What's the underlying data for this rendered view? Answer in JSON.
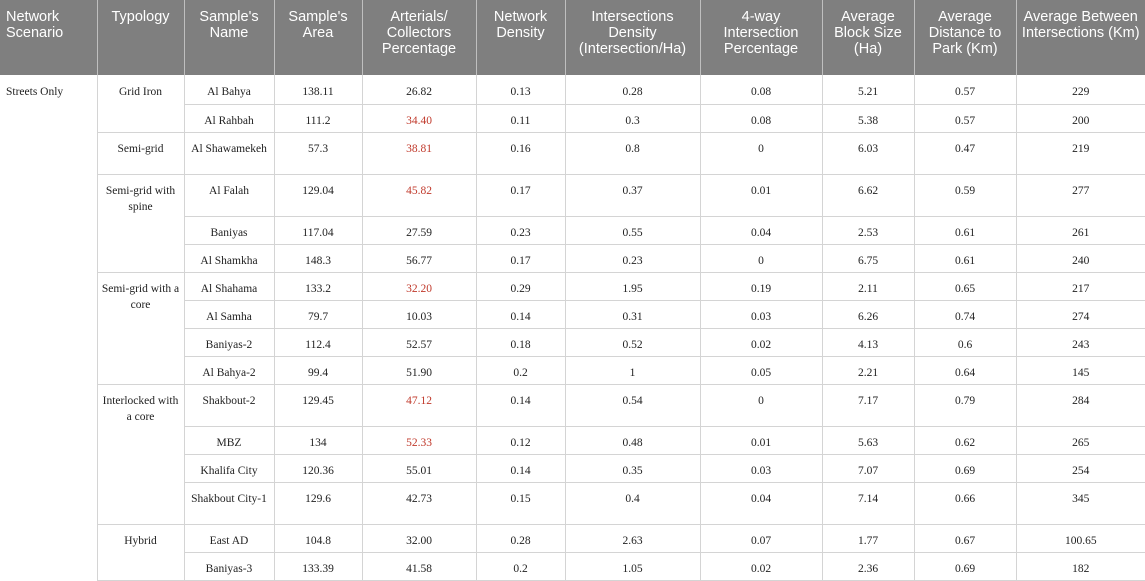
{
  "headers": [
    "Network Scenario",
    "Typology",
    "Sample's Name",
    "Sample's Area",
    "Arterials/ Collectors Percentage",
    "Network Density",
    "Intersections Density (Intersection/Ha)",
    "4-way Intersection Percentage",
    "Average Block Size (Ha)",
    "Average Distance to Park (Km)",
    "Average Between Intersections (Km)"
  ],
  "scenario": "Streets Only",
  "typologies": [
    "Grid Iron",
    "Semi-grid",
    "Semi-grid with spine",
    "Semi-grid with a core",
    "Interlocked with a core",
    "Hybrid"
  ],
  "highlight_color": "#c0392b",
  "rows": [
    {
      "name": "Al Bahya",
      "area": "138.11",
      "arterials": "26.82",
      "arterials_highlight": false,
      "net_density": "0.13",
      "int_density": "0.28",
      "four_way": "0.08",
      "block": "5.21",
      "park": "0.57",
      "between": "229"
    },
    {
      "name": "Al Rahbah",
      "area": "111.2",
      "arterials": "34.40",
      "arterials_highlight": true,
      "net_density": "0.11",
      "int_density": "0.3",
      "four_way": "0.08",
      "block": "5.38",
      "park": "0.57",
      "between": "200"
    },
    {
      "name": "Al Shawamekeh",
      "area": "57.3",
      "arterials": "38.81",
      "arterials_highlight": true,
      "net_density": "0.16",
      "int_density": "0.8",
      "four_way": "0",
      "block": "6.03",
      "park": "0.47",
      "between": "219"
    },
    {
      "name": "Al Falah",
      "area": "129.04",
      "arterials": "45.82",
      "arterials_highlight": true,
      "net_density": "0.17",
      "int_density": "0.37",
      "four_way": "0.01",
      "block": "6.62",
      "park": "0.59",
      "between": "277"
    },
    {
      "name": "Baniyas",
      "area": "117.04",
      "arterials": "27.59",
      "arterials_highlight": false,
      "net_density": "0.23",
      "int_density": "0.55",
      "four_way": "0.04",
      "block": "2.53",
      "park": "0.61",
      "between": "261"
    },
    {
      "name": "Al Shamkha",
      "area": "148.3",
      "arterials": "56.77",
      "arterials_highlight": false,
      "net_density": "0.17",
      "int_density": "0.23",
      "four_way": "0",
      "block": "6.75",
      "park": "0.61",
      "between": "240"
    },
    {
      "name": "Al Shahama",
      "area": "133.2",
      "arterials": "32.20",
      "arterials_highlight": true,
      "net_density": "0.29",
      "int_density": "1.95",
      "four_way": "0.19",
      "block": "2.11",
      "park": "0.65",
      "between": "217"
    },
    {
      "name": "Al Samha",
      "area": "79.7",
      "arterials": "10.03",
      "arterials_highlight": false,
      "net_density": "0.14",
      "int_density": "0.31",
      "four_way": "0.03",
      "block": "6.26",
      "park": "0.74",
      "between": "274"
    },
    {
      "name": "Baniyas-2",
      "area": "112.4",
      "arterials": "52.57",
      "arterials_highlight": false,
      "net_density": "0.18",
      "int_density": "0.52",
      "four_way": "0.02",
      "block": "4.13",
      "park": "0.6",
      "between": "243"
    },
    {
      "name": "Al Bahya-2",
      "area": "99.4",
      "arterials": "51.90",
      "arterials_highlight": false,
      "net_density": "0.2",
      "int_density": "1",
      "four_way": "0.05",
      "block": "2.21",
      "park": "0.64",
      "between": "145"
    },
    {
      "name": "Shakbout-2",
      "area": "129.45",
      "arterials": "47.12",
      "arterials_highlight": true,
      "net_density": "0.14",
      "int_density": "0.54",
      "four_way": "0",
      "block": "7.17",
      "park": "0.79",
      "between": "284"
    },
    {
      "name": "MBZ",
      "area": "134",
      "arterials": "52.33",
      "arterials_highlight": true,
      "net_density": "0.12",
      "int_density": "0.48",
      "four_way": "0.01",
      "block": "5.63",
      "park": "0.62",
      "between": "265"
    },
    {
      "name": "Khalifa City",
      "area": "120.36",
      "arterials": "55.01",
      "arterials_highlight": false,
      "net_density": "0.14",
      "int_density": "0.35",
      "four_way": "0.03",
      "block": "7.07",
      "park": "0.69",
      "between": "254"
    },
    {
      "name": "Shakbout City-1",
      "area": "129.6",
      "arterials": "42.73",
      "arterials_highlight": false,
      "net_density": "0.15",
      "int_density": "0.4",
      "four_way": "0.04",
      "block": "7.14",
      "park": "0.66",
      "between": "345"
    },
    {
      "name": "East AD",
      "area": "104.8",
      "arterials": "32.00",
      "arterials_highlight": false,
      "net_density": "0.28",
      "int_density": "2.63",
      "four_way": "0.07",
      "block": "1.77",
      "park": "0.67",
      "between": "100.65"
    },
    {
      "name": "Baniyas-3",
      "area": "133.39",
      "arterials": "41.58",
      "arterials_highlight": false,
      "net_density": "0.2",
      "int_density": "1.05",
      "four_way": "0.02",
      "block": "2.36",
      "park": "0.69",
      "between": "182"
    }
  ]
}
